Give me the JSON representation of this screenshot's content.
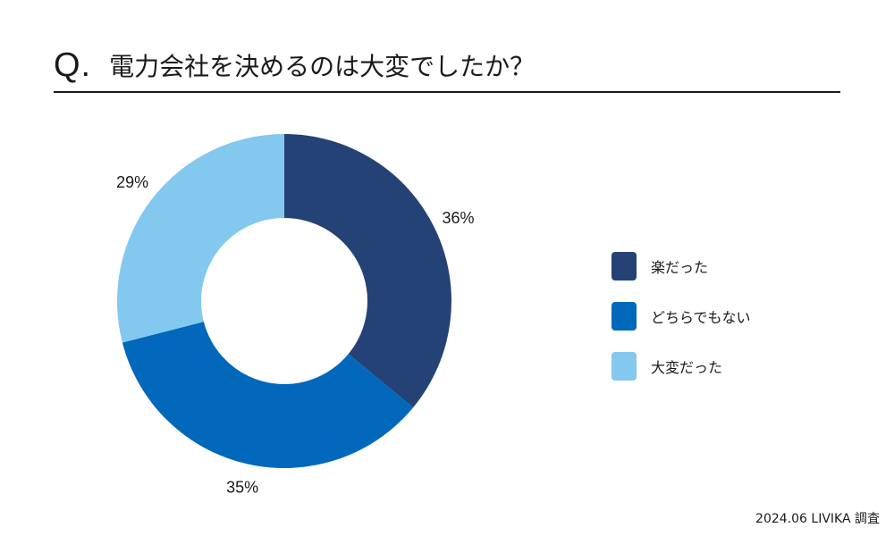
{
  "title": {
    "prefix": "Q.",
    "text": "電力会社を決めるのは大変でしたか？"
  },
  "chart_data": {
    "type": "pie",
    "title": "電力会社を決めるのは大変でしたか？",
    "unit": "%",
    "legend_placement": "right",
    "start_angle": "12 o'clock",
    "direction": "clockwise",
    "slices": [
      {
        "label": "楽だった",
        "value": 36,
        "value_label": "36%",
        "color": "#254276"
      },
      {
        "label": "どちらでもない",
        "value": 35,
        "value_label": "35%",
        "color": "#0268bb"
      },
      {
        "label": "大変だった",
        "value": 29,
        "value_label": "29%",
        "color": "#83c8ef"
      }
    ]
  },
  "footer": {
    "source": "2024.06 LIVIKA 調査"
  }
}
